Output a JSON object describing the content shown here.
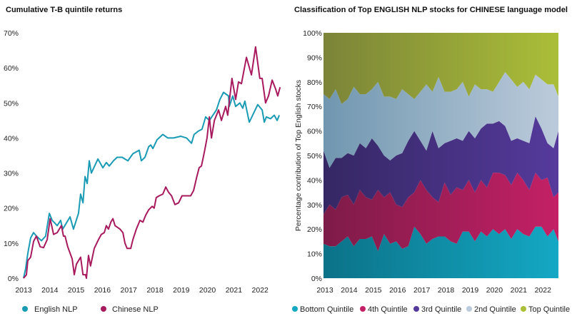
{
  "chart_data": [
    {
      "type": "line",
      "title": "Cumulative T-B quintile returns",
      "xlabel": "",
      "ylabel": "",
      "xlim": [
        2013,
        2022.75
      ],
      "ylim": [
        0,
        70
      ],
      "y_ticks": [
        "0%",
        "10%",
        "20%",
        "30%",
        "40%",
        "50%",
        "60%",
        "70%"
      ],
      "x_ticks": [
        "2013",
        "2014",
        "2015",
        "2016",
        "2017",
        "2018",
        "2019",
        "2020",
        "2021",
        "2022"
      ],
      "grid": false,
      "legend_placement": "bottom",
      "series": [
        {
          "name": "English NLP",
          "color": "#1a9bb5",
          "x": [
            2013.0,
            2013.08,
            2013.16,
            2013.27,
            2013.38,
            2013.49,
            2013.68,
            2013.84,
            2013.98,
            2014.09,
            2014.28,
            2014.41,
            2014.49,
            2014.77,
            2014.9,
            2015.09,
            2015.17,
            2015.26,
            2015.34,
            2015.42,
            2015.5,
            2015.58,
            2015.83,
            2016.02,
            2016.15,
            2016.26,
            2016.42,
            2016.56,
            2016.75,
            2016.97,
            2017.16,
            2017.4,
            2017.48,
            2017.62,
            2017.76,
            2017.84,
            2017.92,
            2018.08,
            2018.3,
            2018.49,
            2018.71,
            2018.98,
            2019.2,
            2019.39,
            2019.49,
            2019.66,
            2019.79,
            2019.93,
            2020.07,
            2020.34,
            2020.47,
            2020.61,
            2020.8,
            2020.83,
            2020.96,
            2021.07,
            2021.23,
            2021.34,
            2021.42,
            2021.59,
            2021.75,
            2021.91,
            2022.08,
            2022.16,
            2022.24,
            2022.4,
            2022.54,
            2022.65,
            2022.73
          ],
          "y": [
            0,
            2.7,
            7,
            11.5,
            13,
            12,
            10.7,
            12,
            18.5,
            16.5,
            15,
            16.5,
            14,
            17.5,
            14,
            18.5,
            24,
            21.5,
            29,
            27,
            33.5,
            30,
            34,
            31.5,
            33,
            32,
            33.5,
            34.5,
            34.5,
            33.5,
            35.5,
            36.5,
            33.5,
            34.5,
            37.5,
            38,
            37,
            39.5,
            41,
            40,
            40,
            40.5,
            40,
            38.5,
            41,
            42,
            42.5,
            46,
            45,
            48,
            51,
            53,
            52,
            49,
            52,
            49,
            50,
            48.5,
            50.5,
            44.5,
            47,
            49.5,
            48,
            44.5,
            46,
            45.5,
            46.5,
            45,
            46.5
          ]
        },
        {
          "name": "Chinese NLP",
          "color": "#a8195e",
          "x": [
            2013.0,
            2013.11,
            2013.16,
            2013.27,
            2013.38,
            2013.49,
            2013.63,
            2013.76,
            2013.9,
            2014.01,
            2014.14,
            2014.28,
            2014.44,
            2014.52,
            2014.58,
            2014.68,
            2014.85,
            2014.93,
            2015.01,
            2015.17,
            2015.26,
            2015.36,
            2015.39,
            2015.47,
            2015.55,
            2015.69,
            2015.85,
            2015.96,
            2016.07,
            2016.15,
            2016.23,
            2016.32,
            2016.4,
            2016.48,
            2016.67,
            2016.78,
            2016.86,
            2016.94,
            2017.08,
            2017.16,
            2017.29,
            2017.43,
            2017.54,
            2017.65,
            2017.76,
            2017.89,
            2017.97,
            2018.05,
            2018.16,
            2018.3,
            2018.41,
            2018.52,
            2018.63,
            2018.76,
            2018.9,
            2019.03,
            2019.17,
            2019.28,
            2019.36,
            2019.47,
            2019.58,
            2019.68,
            2019.77,
            2019.88,
            2019.98,
            2020.07,
            2020.15,
            2020.26,
            2020.42,
            2020.53,
            2020.69,
            2020.77,
            2020.93,
            2021.07,
            2021.18,
            2021.29,
            2021.48,
            2021.67,
            2021.83,
            2021.99,
            2022.08,
            2022.21,
            2022.32,
            2022.46,
            2022.59,
            2022.67,
            2022.76
          ],
          "y": [
            0,
            1,
            5,
            6,
            10.5,
            12,
            9,
            8.7,
            11,
            17,
            12.5,
            13,
            15,
            12,
            12,
            9,
            5.5,
            1,
            4,
            6,
            1,
            1,
            0,
            6.5,
            3.5,
            8.5,
            11,
            12.5,
            13,
            15,
            14,
            16,
            17,
            15,
            14,
            13,
            10,
            8.5,
            8.5,
            11,
            14,
            16.5,
            16,
            18,
            19.5,
            20.5,
            20,
            23,
            23.5,
            24,
            26,
            24.5,
            23.5,
            21,
            21.5,
            23.5,
            23.5,
            23.5,
            23.5,
            25,
            28.5,
            31.5,
            32,
            36,
            40,
            46,
            40,
            45,
            48,
            45,
            49,
            46.5,
            57,
            51,
            56,
            55.5,
            63,
            58,
            66,
            57,
            57,
            50,
            52,
            56.5,
            54,
            52,
            54.5
          ]
        }
      ]
    },
    {
      "type": "area",
      "stacked": true,
      "normalized": true,
      "title": "Classification of Top ENGLISH NLP stocks for CHINESE language model",
      "xlabel": "",
      "ylabel": "Percentage contribution of Top English stocks",
      "xlim": [
        2013,
        2022.7
      ],
      "ylim": [
        0,
        100
      ],
      "y_ticks": [
        "0%",
        "10%",
        "20%",
        "30%",
        "40%",
        "50%",
        "60%",
        "70%",
        "80%",
        "90%",
        "100%"
      ],
      "x_ticks": [
        "2013",
        "2014",
        "2015",
        "2016",
        "2017",
        "2018",
        "2019",
        "2020",
        "2021",
        "2022"
      ],
      "grid": false,
      "legend_placement": "bottom",
      "x": [
        2013.0,
        2013.25,
        2013.5,
        2013.75,
        2014.0,
        2014.25,
        2014.5,
        2014.75,
        2015.0,
        2015.25,
        2015.5,
        2015.75,
        2016.0,
        2016.25,
        2016.5,
        2016.75,
        2017.0,
        2017.25,
        2017.5,
        2017.75,
        2018.0,
        2018.25,
        2018.5,
        2018.75,
        2019.0,
        2019.25,
        2019.5,
        2019.75,
        2020.0,
        2020.25,
        2020.5,
        2020.75,
        2021.0,
        2021.25,
        2021.5,
        2021.75,
        2022.0,
        2022.25,
        2022.5,
        2022.7
      ],
      "series": [
        {
          "name": "Bottom Quintile",
          "color_start": "#0b7288",
          "color_end": "#14a8c4",
          "values": [
            14,
            13,
            13,
            15,
            17,
            13,
            16,
            16,
            17,
            11,
            18,
            14,
            15,
            12,
            13,
            21,
            18,
            14,
            16,
            17,
            17,
            15,
            14,
            19,
            19,
            15,
            19,
            17,
            20,
            18,
            20,
            16,
            20,
            18,
            17,
            21,
            21,
            17,
            20,
            15
          ]
        },
        {
          "name": "4th Quintile",
          "color_start": "#7e1b48",
          "color_end": "#c42066",
          "values": [
            12,
            17,
            15,
            18,
            17,
            17,
            20,
            17,
            15,
            25,
            15,
            21,
            15,
            17,
            20,
            14,
            22,
            22,
            17,
            14,
            22,
            19,
            23,
            17,
            21,
            20,
            21,
            20,
            23,
            25,
            22,
            22,
            23,
            22,
            19,
            22,
            19,
            24,
            13,
            20
          ]
        },
        {
          "name": "3rd Quintile",
          "color_start": "#352764",
          "color_end": "#553a9c",
          "values": [
            26,
            15,
            21,
            16,
            17,
            20,
            19,
            20,
            25,
            18,
            17,
            13,
            20,
            22,
            23,
            25,
            16,
            16,
            27,
            22,
            16,
            22,
            20,
            20,
            20,
            22,
            21,
            26,
            20,
            21,
            20,
            18,
            14,
            16,
            19,
            23,
            21,
            14,
            20,
            25
          ]
        },
        {
          "name": "2nd Quintile",
          "color_start": "#7097b0",
          "color_end": "#bccbdb",
          "values": [
            23,
            28,
            28,
            22,
            22,
            28,
            20,
            22,
            20,
            26,
            24,
            26,
            23,
            26,
            19,
            13,
            20,
            27,
            16,
            29,
            21,
            20,
            20,
            24,
            14,
            22,
            16,
            14,
            13,
            16,
            22,
            25,
            21,
            24,
            22,
            17,
            20,
            24,
            26,
            14
          ]
        },
        {
          "name": "Top Quintile",
          "color_start": "#7b8438",
          "color_end": "#abbe38",
          "values": [
            25,
            27,
            23,
            29,
            27,
            22,
            25,
            25,
            23,
            20,
            26,
            26,
            27,
            23,
            25,
            27,
            24,
            21,
            24,
            18,
            24,
            24,
            23,
            20,
            26,
            21,
            23,
            23,
            24,
            20,
            16,
            19,
            22,
            20,
            23,
            17,
            19,
            21,
            21,
            26
          ]
        }
      ]
    }
  ]
}
